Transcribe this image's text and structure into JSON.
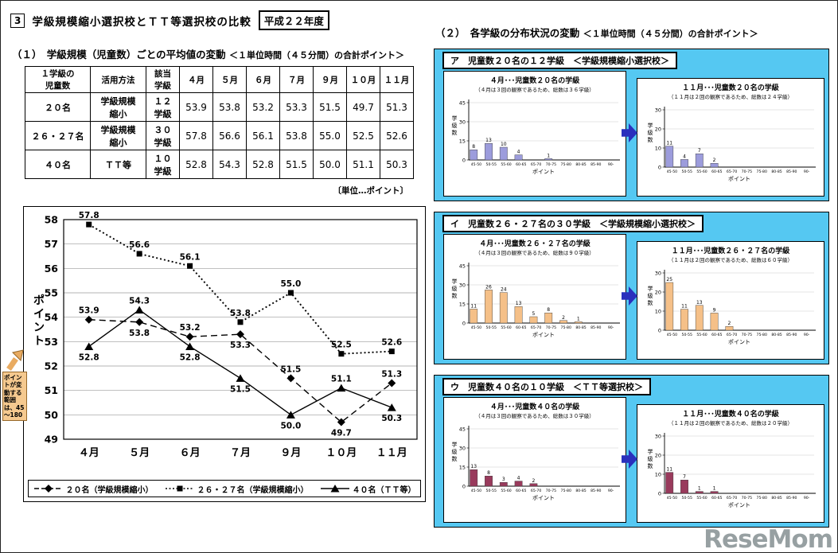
{
  "header": {
    "number": "3",
    "title": "学級規模縮小選択校とＴＴ等選択校の比較",
    "year_badge": "平成２２年度"
  },
  "section1": {
    "heading": "（１）　学級規模（児童数）ごとの平均値の変動",
    "heading_note": "＜１単位時間（４５分間）の合計ポイント＞",
    "table": {
      "headers": [
        "１学級の\n児童数",
        "活用方法",
        "該当\n学級",
        "４月",
        "５月",
        "６月",
        "７月",
        "９月",
        "１０月",
        "１１月"
      ],
      "rows": [
        {
          "size": "２０名",
          "method": "学級規模\n縮小",
          "classes": "１２\n学級",
          "values": [
            "53.9",
            "53.8",
            "53.2",
            "53.3",
            "51.5",
            "49.7",
            "51.3"
          ]
        },
        {
          "size": "２６・２７名",
          "method": "学級規模\n縮小",
          "classes": "３０\n学級",
          "values": [
            "57.8",
            "56.6",
            "56.1",
            "53.8",
            "55.0",
            "52.5",
            "52.6"
          ]
        },
        {
          "size": "４０名",
          "method": "ＴＴ等",
          "classes": "１０\n学級",
          "values": [
            "52.8",
            "54.3",
            "52.8",
            "51.5",
            "50.0",
            "51.1",
            "50.3"
          ]
        }
      ]
    },
    "unit_note": "〔単位…ポイント〕",
    "annotation": "ポイントが変動する範囲は、45～180"
  },
  "section2": {
    "heading": "（２）　各学級の分布状況の変動",
    "heading_note": "＜１単位時間（４５分間）の合計ポイント＞",
    "panels": [
      {
        "label": "ア　児童数２０名の１２学級　＜学級規模縮小選択校＞"
      },
      {
        "label": "イ　児童数２６・２７名の３０学級　＜学級規模縮小選択校＞"
      },
      {
        "label": "ウ　児童数４０名の１０学級　＜ＴＴ等選択校＞"
      }
    ]
  },
  "watermark": "ReseMom",
  "colors": {
    "panel_background": "#55c8f2",
    "flow_arrow": "#2a30bd",
    "bar_purple": "#9c9cdc",
    "bar_peach": "#f5c088",
    "bar_maroon": "#993a5c",
    "annotation_background": "#f5c98f",
    "line_color": "#000000"
  },
  "chart_data": [
    {
      "id": "monthly-average-line",
      "type": "line",
      "x": [
        "４月",
        "５月",
        "６月",
        "７月",
        "９月",
        "１０月",
        "１１月"
      ],
      "ylabel": "ポイント",
      "ylim": [
        49,
        58
      ],
      "ytick_step": 1,
      "grid": true,
      "legend_position": "bottom",
      "series": [
        {
          "name": "２０名（学級規模縮小）",
          "marker": "diamond",
          "line": "dashed",
          "values": [
            53.9,
            53.8,
            53.2,
            53.3,
            51.5,
            49.7,
            51.3
          ],
          "label_pos": [
            "above",
            "below",
            "above",
            "below",
            "above",
            "below",
            "above"
          ]
        },
        {
          "name": "２６・２７名（学級規模縮小）",
          "marker": "square",
          "line": "dotted",
          "values": [
            57.8,
            56.6,
            56.1,
            53.8,
            55.0,
            52.5,
            52.6
          ],
          "label_pos": [
            "above",
            "above",
            "above",
            "above",
            "above",
            "above",
            "above"
          ]
        },
        {
          "name": "４０名（ＴＴ等）",
          "marker": "triangle",
          "line": "solid",
          "values": [
            52.8,
            54.3,
            52.8,
            51.5,
            50.0,
            51.1,
            50.3
          ],
          "label_pos": [
            "below",
            "above",
            "below",
            "below",
            "below",
            "above",
            "below"
          ]
        }
      ]
    },
    {
      "id": "bar-a-april",
      "type": "bar",
      "title": "４月･･･児童数２０名の学級",
      "subtitle": "（４月は３回の観察であるため、総数は３６学級）",
      "categories": [
        "45-50",
        "50-55",
        "55-60",
        "60-65",
        "65-70",
        "70-75",
        "75-80",
        "80-85",
        "85-90",
        "90-"
      ],
      "values": [
        8,
        13,
        10,
        4,
        0,
        1,
        0,
        0,
        0,
        0
      ],
      "ylim": [
        0,
        45
      ],
      "yticks": [
        0,
        15,
        30,
        45
      ],
      "xlabel": "ポイント",
      "ylabel": "学級数",
      "color": "#9c9cdc"
    },
    {
      "id": "bar-a-november",
      "type": "bar",
      "title": "１１月･･･児童数２０名の学級",
      "subtitle": "（１１月は２回の観察であるため、総数は２４学級）",
      "categories": [
        "45-50",
        "50-55",
        "55-60",
        "60-65",
        "65-70",
        "70-75",
        "75-80",
        "80-85",
        "85-90",
        "90-"
      ],
      "values": [
        11,
        4,
        7,
        2,
        0,
        0,
        0,
        0,
        0,
        0
      ],
      "ylim": [
        0,
        30
      ],
      "yticks": [
        0,
        10,
        20,
        30
      ],
      "xlabel": "ポイント",
      "ylabel": "学級数",
      "color": "#9c9cdc"
    },
    {
      "id": "bar-b-april",
      "type": "bar",
      "title": "４月･･･児童数２６・２７名の学級",
      "subtitle": "（４月は３回の観察であるため、総数は９０学級）",
      "categories": [
        "45-50",
        "50-55",
        "55-60",
        "60-65",
        "65-70",
        "70-75",
        "75-80",
        "80-85",
        "85-90",
        "90-"
      ],
      "values": [
        11,
        26,
        24,
        13,
        5,
        8,
        2,
        1,
        0,
        0
      ],
      "ylim": [
        0,
        45
      ],
      "yticks": [
        0,
        15,
        30,
        45
      ],
      "xlabel": "ポイント",
      "ylabel": "学級数",
      "color": "#f5c088"
    },
    {
      "id": "bar-b-november",
      "type": "bar",
      "title": "１１月･･･児童数２６・２７名の学級",
      "subtitle": "（１１月は２回の観察であるため、総数は６０学級）",
      "categories": [
        "45-50",
        "50-55",
        "55-60",
        "60-65",
        "65-70",
        "70-75",
        "75-80",
        "80-85",
        "85-90",
        "90-"
      ],
      "values": [
        25,
        11,
        13,
        9,
        2,
        0,
        0,
        0,
        0,
        0
      ],
      "ylim": [
        0,
        30
      ],
      "yticks": [
        0,
        10,
        20,
        30
      ],
      "xlabel": "ポイント",
      "ylabel": "学級数",
      "color": "#f5c088"
    },
    {
      "id": "bar-c-april",
      "type": "bar",
      "title": "４月･･･児童数４０名の学級",
      "subtitle": "（４月は３回の観察であるため、総数は３０学級）",
      "categories": [
        "45-50",
        "50-55",
        "55-60",
        "60-65",
        "65-70",
        "70-75",
        "75-80",
        "80-85",
        "85-90",
        "90-"
      ],
      "values": [
        13,
        8,
        3,
        4,
        2,
        0,
        0,
        0,
        0,
        0
      ],
      "ylim": [
        0,
        45
      ],
      "yticks": [
        0,
        15,
        30,
        45
      ],
      "xlabel": "ポイント",
      "ylabel": "学級数",
      "color": "#993a5c"
    },
    {
      "id": "bar-c-november",
      "type": "bar",
      "title": "１１月･･･児童数４０名の学級",
      "subtitle": "（１１月は２回の観察であるため、総数は２０学級）",
      "categories": [
        "45-50",
        "50-55",
        "55-60",
        "60-65",
        "65-70",
        "70-75",
        "75-80",
        "80-85",
        "85-90",
        "90-"
      ],
      "values": [
        11,
        7,
        1,
        1,
        0,
        0,
        0,
        0,
        0,
        0
      ],
      "ylim": [
        0,
        30
      ],
      "yticks": [
        0,
        10,
        20,
        30
      ],
      "xlabel": "ポイント",
      "ylabel": "学級数",
      "color": "#993a5c"
    }
  ]
}
